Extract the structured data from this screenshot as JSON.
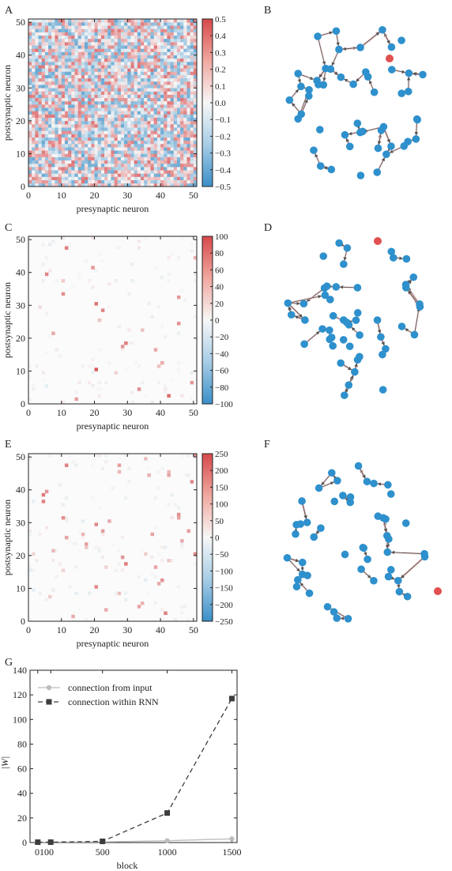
{
  "panel_letters": [
    "A",
    "B",
    "C",
    "D",
    "E",
    "F",
    "G"
  ],
  "heatmap_axes": {
    "xlabel": "presynaptic neuron",
    "ylabel": "postsynaptic neuron",
    "xticks": [
      "0",
      "10",
      "20",
      "30",
      "40",
      "50"
    ],
    "yticks": [
      "0",
      "10",
      "20",
      "30",
      "40",
      "50"
    ]
  },
  "colorbars": [
    {
      "ticks": [
        "0.5",
        "0.4",
        "0.3",
        "0.2",
        "0.1",
        "0.0",
        "−0.1",
        "−0.2",
        "−0.3",
        "−0.4",
        "−0.5"
      ]
    },
    {
      "ticks": [
        "100",
        "80",
        "60",
        "40",
        "20",
        "0",
        "−20",
        "−40",
        "−60",
        "−80",
        "−100"
      ]
    },
    {
      "ticks": [
        "250",
        "200",
        "150",
        "100",
        "50",
        "0",
        "−50",
        "−100",
        "−150",
        "−200",
        "−250"
      ]
    }
  ],
  "colors": {
    "positive": "#d6494b",
    "negative": "#3a8fc8",
    "node": "#2e90cc",
    "highlight_node": "#e05050",
    "edge": "#555555"
  },
  "chart_data": [
    {
      "type": "heatmap",
      "panel": "A",
      "vmin": -0.5,
      "vmax": 0.5,
      "size": 51,
      "seed": 7,
      "distribution": "uniform random weights"
    },
    {
      "type": "scatter",
      "panel": "B",
      "kind": "network graph",
      "nodes": 50,
      "highlighted_nodes": 1
    },
    {
      "type": "heatmap",
      "panel": "C",
      "vmin": -100,
      "vmax": 100,
      "size": 51,
      "strong_entries": [
        [
          11,
          47,
          70
        ],
        [
          5,
          39,
          65
        ],
        [
          10,
          37,
          25
        ],
        [
          10,
          33,
          60
        ],
        [
          19,
          41,
          55
        ],
        [
          20,
          30,
          75
        ],
        [
          22,
          28,
          65
        ],
        [
          21,
          25,
          30
        ],
        [
          29,
          18,
          70
        ],
        [
          28,
          17,
          55
        ],
        [
          34,
          22,
          30
        ],
        [
          38,
          16,
          45
        ],
        [
          40,
          12,
          45
        ],
        [
          39,
          11,
          30
        ],
        [
          45,
          32,
          55
        ],
        [
          45,
          24,
          60
        ],
        [
          49,
          6,
          55
        ],
        [
          50,
          44,
          40
        ],
        [
          20,
          10,
          90
        ],
        [
          33,
          4,
          60
        ],
        [
          42,
          2,
          80
        ],
        [
          14,
          1,
          50
        ],
        [
          7,
          21,
          45
        ],
        [
          26,
          9,
          20
        ],
        [
          3,
          29,
          15
        ]
      ]
    },
    {
      "type": "scatter",
      "panel": "D",
      "kind": "network graph",
      "nodes": 50,
      "highlighted_nodes": 1
    },
    {
      "type": "heatmap",
      "panel": "E",
      "vmin": -250,
      "vmax": 250,
      "size": 51,
      "strong_entries": [
        [
          4,
          38,
          180
        ],
        [
          4,
          36,
          170
        ],
        [
          5,
          39,
          140
        ],
        [
          11,
          47,
          170
        ],
        [
          10,
          31,
          150
        ],
        [
          11,
          25,
          120
        ],
        [
          16,
          26,
          90
        ],
        [
          17,
          23,
          130
        ],
        [
          20,
          29,
          160
        ],
        [
          22,
          27,
          130
        ],
        [
          24,
          30,
          110
        ],
        [
          27,
          47,
          130
        ],
        [
          27,
          45,
          90
        ],
        [
          29,
          17,
          180
        ],
        [
          28,
          19,
          140
        ],
        [
          35,
          49,
          80
        ],
        [
          36,
          44,
          100
        ],
        [
          37,
          26,
          120
        ],
        [
          38,
          16,
          120
        ],
        [
          40,
          12,
          150
        ],
        [
          39,
          11,
          110
        ],
        [
          41,
          2,
          170
        ],
        [
          42,
          44,
          120
        ],
        [
          42,
          45,
          90
        ],
        [
          45,
          32,
          150
        ],
        [
          45,
          31,
          120
        ],
        [
          46,
          24,
          110
        ],
        [
          48,
          27,
          130
        ],
        [
          49,
          42,
          160
        ],
        [
          50,
          50,
          140
        ],
        [
          50,
          20,
          160
        ],
        [
          20,
          10,
          160
        ],
        [
          23,
          3,
          110
        ],
        [
          27,
          8,
          80
        ],
        [
          33,
          4,
          120
        ],
        [
          34,
          5,
          100
        ],
        [
          17,
          22,
          70
        ],
        [
          7,
          21,
          90
        ],
        [
          13,
          1,
          110
        ],
        [
          6,
          7,
          60
        ],
        [
          35,
          20,
          60
        ],
        [
          10,
          15,
          50
        ],
        [
          23,
          16,
          50
        ],
        [
          42,
          18,
          70
        ],
        [
          1,
          20,
          50
        ]
      ]
    },
    {
      "type": "scatter",
      "panel": "F",
      "kind": "network graph",
      "nodes": 50,
      "highlighted_nodes": 1
    },
    {
      "type": "line",
      "panel": "G",
      "x": [
        0,
        100,
        500,
        1000,
        1500
      ],
      "xticks": [
        "0100",
        "500",
        "1000",
        "1500"
      ],
      "xlabel": "block",
      "ylabel": "|W|",
      "ylim": [
        0,
        140
      ],
      "yticks": [
        "0",
        "20",
        "40",
        "60",
        "80",
        "100",
        "120",
        "140"
      ],
      "series": [
        {
          "name": "connection from input",
          "values": [
            0.3,
            0.3,
            0.5,
            1.5,
            3.0
          ]
        },
        {
          "name": "connection within RNN",
          "values": [
            0.3,
            0.3,
            1.0,
            24.0,
            117.0
          ]
        }
      ]
    }
  ]
}
